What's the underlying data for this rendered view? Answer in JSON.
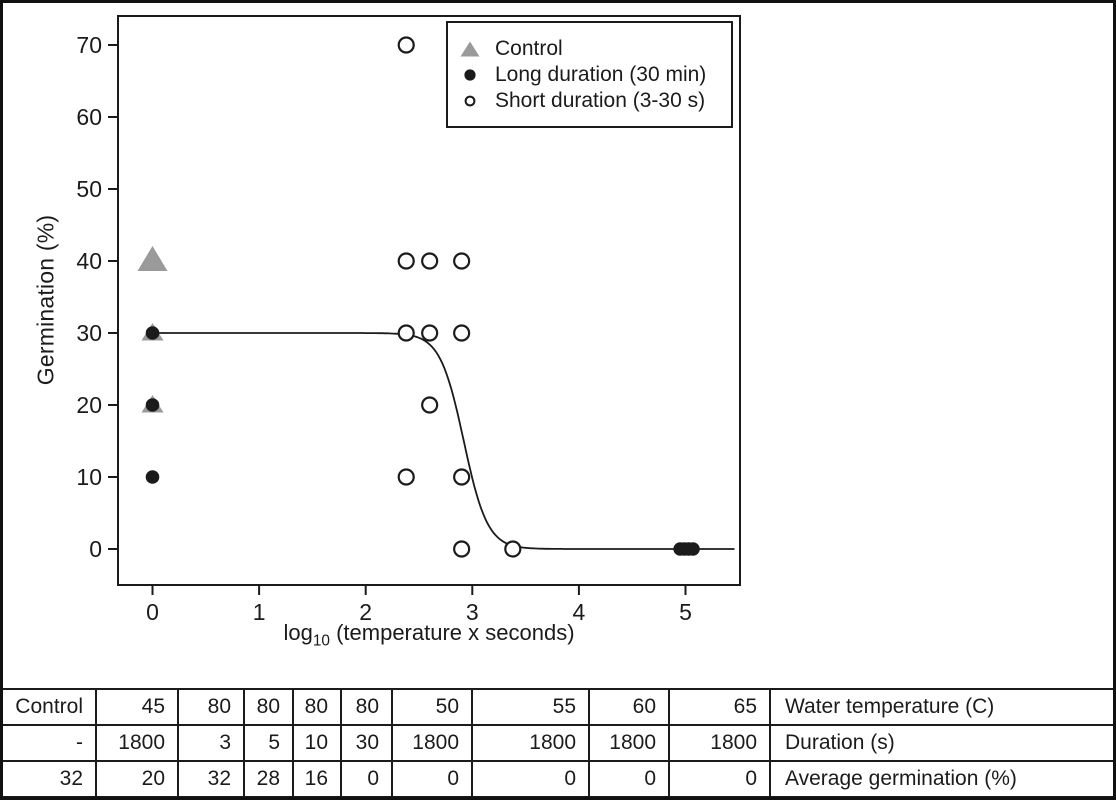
{
  "chart_data": {
    "type": "scatter",
    "title": "",
    "xlabel": "log10 (temperature x seconds)",
    "xlabel_parts": {
      "log": "log",
      "sub": "10",
      "rest": " (temperature x seconds)"
    },
    "ylabel": "Germination (%)",
    "xlim": [
      -0.32,
      5.5
    ],
    "ylim": [
      -5,
      74
    ],
    "xticks": [
      0,
      1,
      2,
      3,
      4,
      5
    ],
    "yticks": [
      0,
      10,
      20,
      30,
      40,
      50,
      60,
      70
    ],
    "grid": false,
    "legend_position": "top-right",
    "legend": [
      {
        "label": "Control",
        "marker": "triangle",
        "color": "#9a9a9a"
      },
      {
        "label": "Long duration (30 min)",
        "marker": "filled-circle",
        "color": "#1b1b1b"
      },
      {
        "label": "Short duration (3-30 s)",
        "marker": "open-circle",
        "color": "#1b1b1b"
      }
    ],
    "series": [
      {
        "name": "Control",
        "marker": "triangle",
        "color": "#9a9a9a",
        "points": [
          {
            "x": 0,
            "y": 40,
            "size": "large"
          },
          {
            "x": 0,
            "y": 30,
            "size": "small"
          },
          {
            "x": 0,
            "y": 20,
            "size": "small"
          }
        ]
      },
      {
        "name": "Long duration (30 min)",
        "marker": "filled-circle",
        "color": "#1b1b1b",
        "points": [
          {
            "x": 0,
            "y": 30
          },
          {
            "x": 0,
            "y": 20
          },
          {
            "x": 0,
            "y": 10
          },
          {
            "x": 4.95,
            "y": 0
          },
          {
            "x": 4.99,
            "y": 0
          },
          {
            "x": 5.03,
            "y": 0
          },
          {
            "x": 5.07,
            "y": 0
          }
        ]
      },
      {
        "name": "Short duration (3-30 s)",
        "marker": "open-circle",
        "color": "#1b1b1b",
        "points": [
          {
            "x": 2.38,
            "y": 70
          },
          {
            "x": 2.38,
            "y": 40
          },
          {
            "x": 2.6,
            "y": 40
          },
          {
            "x": 2.9,
            "y": 40
          },
          {
            "x": 2.38,
            "y": 30
          },
          {
            "x": 2.6,
            "y": 30
          },
          {
            "x": 2.9,
            "y": 30
          },
          {
            "x": 2.6,
            "y": 20
          },
          {
            "x": 2.38,
            "y": 10
          },
          {
            "x": 2.9,
            "y": 10
          },
          {
            "x": 2.9,
            "y": 0
          },
          {
            "x": 3.38,
            "y": 0
          }
        ]
      }
    ],
    "fit_curve": {
      "plateau": 30,
      "midpoint": 2.92,
      "steepness": 9,
      "x_start": 0,
      "x_end": 5.47
    }
  },
  "table": {
    "rows": [
      {
        "cells": [
          "Control",
          "45",
          "80",
          "80",
          "80",
          "80",
          "50",
          "55",
          "60",
          "65"
        ],
        "label": "Water temperature (C)"
      },
      {
        "cells": [
          "-",
          "1800",
          "3",
          "5",
          "10",
          "30",
          "1800",
          "1800",
          "1800",
          "1800"
        ],
        "label": "Duration (s)"
      },
      {
        "cells": [
          "32",
          "20",
          "32",
          "28",
          "16",
          "0",
          "0",
          "0",
          "0",
          "0"
        ],
        "label": "Average germination (%)"
      }
    ]
  },
  "colors": {
    "ink": "#1b1b1b",
    "control_gray": "#9a9a9a",
    "background": "#ffffff"
  }
}
